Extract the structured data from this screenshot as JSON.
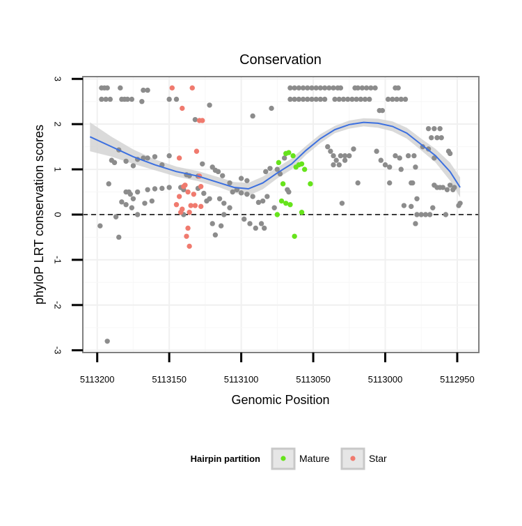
{
  "chart_data": {
    "type": "scatter",
    "title": "Conservation",
    "xlabel": "Genomic Position",
    "ylabel": "phyloP LRT conservation scores",
    "x_reversed": true,
    "xlim": [
      5113210,
      5112935
    ],
    "ylim": [
      -3.05,
      3.05
    ],
    "x_ticks": [
      5113200,
      5113150,
      5113100,
      5113050,
      5113000,
      5112950
    ],
    "x_tick_labels": [
      "5113200",
      "5113150",
      "5113100",
      "5113050",
      "5113000",
      "5112950"
    ],
    "y_ticks": [
      3,
      2,
      1,
      0,
      -1,
      -2,
      -3
    ],
    "y_tick_labels": [
      "3",
      "2",
      "1",
      "0",
      "-1",
      "-2",
      "-3"
    ],
    "reference_line": {
      "y": 0,
      "style": "dashed"
    },
    "legend": {
      "title": "Hairpin partition",
      "position": "bottom",
      "entries": [
        {
          "label": "Mature",
          "color": "#66e31b"
        },
        {
          "label": "Star",
          "color": "#f07a6e"
        }
      ]
    },
    "colors": {
      "other": "#8c8c8c",
      "Mature": "#66e31b",
      "Star": "#f07a6e",
      "smooth": "#3b6fe0",
      "band": "#d4d4d4"
    },
    "series": [
      {
        "name": "Other",
        "points": [
          [
            5113197,
            2.8
          ],
          [
            5113195,
            2.8
          ],
          [
            5113193,
            2.8
          ],
          [
            5113184,
            2.8
          ],
          [
            5113197,
            2.55
          ],
          [
            5113194,
            2.55
          ],
          [
            5113191,
            2.55
          ],
          [
            5113183,
            2.55
          ],
          [
            5113181,
            2.55
          ],
          [
            5113179,
            2.55
          ],
          [
            5113176,
            2.55
          ],
          [
            5113168,
            2.75
          ],
          [
            5113165,
            2.75
          ],
          [
            5113169,
            2.5
          ],
          [
            5113150,
            2.55
          ],
          [
            5113145,
            2.55
          ],
          [
            5113132,
            2.1
          ],
          [
            5113122,
            2.42
          ],
          [
            5113092,
            2.18
          ],
          [
            5113079,
            2.35
          ],
          [
            5113190,
            1.2
          ],
          [
            5113188,
            1.15
          ],
          [
            5113185,
            1.43
          ],
          [
            5113180,
            1.18
          ],
          [
            5113175,
            1.08
          ],
          [
            5113172,
            1.22
          ],
          [
            5113168,
            1.25
          ],
          [
            5113165,
            1.25
          ],
          [
            5113160,
            1.28
          ],
          [
            5113155,
            1.1
          ],
          [
            5113150,
            1.3
          ],
          [
            5113138,
            0.88
          ],
          [
            5113136,
            0.86
          ],
          [
            5113130,
            0.85
          ],
          [
            5113127,
            1.12
          ],
          [
            5113120,
            1.05
          ],
          [
            5113118,
            0.98
          ],
          [
            5113116,
            0.95
          ],
          [
            5113113,
            0.86
          ],
          [
            5113108,
            0.7
          ],
          [
            5113103,
            0.55
          ],
          [
            5113100,
            0.8
          ],
          [
            5113096,
            0.75
          ],
          [
            5113083,
            0.95
          ],
          [
            5113080,
            1.02
          ],
          [
            5113075,
            1.0
          ],
          [
            5113192,
            0.68
          ],
          [
            5113180,
            0.5
          ],
          [
            5113178,
            0.5
          ],
          [
            5113177,
            0.45
          ],
          [
            5113175,
            0.35
          ],
          [
            5113172,
            0.5
          ],
          [
            5113165,
            0.55
          ],
          [
            5113160,
            0.57
          ],
          [
            5113155,
            0.58
          ],
          [
            5113150,
            0.6
          ],
          [
            5113142,
            0.6
          ],
          [
            5113140,
            0.55
          ],
          [
            5113130,
            0.58
          ],
          [
            5113126,
            0.47
          ],
          [
            5113124,
            0.3
          ],
          [
            5113122,
            0.35
          ],
          [
            5113115,
            0.35
          ],
          [
            5113112,
            0.25
          ],
          [
            5113108,
            0.15
          ],
          [
            5113106,
            0.5
          ],
          [
            5113103,
            0.55
          ],
          [
            5113100,
            0.48
          ],
          [
            5113096,
            0.45
          ],
          [
            5113092,
            0.4
          ],
          [
            5113088,
            0.27
          ],
          [
            5113085,
            0.3
          ],
          [
            5113082,
            0.4
          ],
          [
            5113077,
            0.15
          ],
          [
            5113183,
            0.28
          ],
          [
            5113180,
            0.22
          ],
          [
            5113176,
            0.15
          ],
          [
            5113167,
            0.25
          ],
          [
            5113162,
            0.3
          ],
          [
            5113198,
            -0.25
          ],
          [
            5113187,
            -0.05
          ],
          [
            5113185,
            -0.5
          ],
          [
            5113172,
            0.0
          ],
          [
            5113140,
            0.0
          ],
          [
            5113112,
            0.0
          ],
          [
            5113098,
            -0.1
          ],
          [
            5113094,
            -0.2
          ],
          [
            5113090,
            -0.3
          ],
          [
            5113086,
            -0.2
          ],
          [
            5113084,
            -0.3
          ],
          [
            5113120,
            -0.2
          ],
          [
            5113118,
            -0.45
          ],
          [
            5113114,
            -0.25
          ],
          [
            5113193,
            -2.8
          ],
          [
            5113068,
            0.55
          ],
          [
            5113067,
            0.5
          ],
          [
            5113070,
            1.25
          ],
          [
            5113073,
            0.9
          ],
          [
            5113066,
            2.8
          ],
          [
            5113063,
            2.8
          ],
          [
            5113060,
            2.8
          ],
          [
            5113057,
            2.8
          ],
          [
            5113054,
            2.8
          ],
          [
            5113051,
            2.8
          ],
          [
            5113048,
            2.8
          ],
          [
            5113045,
            2.8
          ],
          [
            5113042,
            2.8
          ],
          [
            5113039,
            2.8
          ],
          [
            5113036,
            2.8
          ],
          [
            5113066,
            2.55
          ],
          [
            5113063,
            2.55
          ],
          [
            5113060,
            2.55
          ],
          [
            5113057,
            2.55
          ],
          [
            5113054,
            2.55
          ],
          [
            5113051,
            2.55
          ],
          [
            5113048,
            2.55
          ],
          [
            5113045,
            2.55
          ],
          [
            5113042,
            2.55
          ],
          [
            5113033,
            2.8
          ],
          [
            5113031,
            2.8
          ],
          [
            5113021,
            2.8
          ],
          [
            5113019,
            2.8
          ],
          [
            5113016,
            2.8
          ],
          [
            5113013,
            2.8
          ],
          [
            5113010,
            2.8
          ],
          [
            5113007,
            2.8
          ],
          [
            5112993,
            2.8
          ],
          [
            5112991,
            2.8
          ],
          [
            5113035,
            2.55
          ],
          [
            5113032,
            2.55
          ],
          [
            5113029,
            2.55
          ],
          [
            5113026,
            2.55
          ],
          [
            5113023,
            2.55
          ],
          [
            5113020,
            2.55
          ],
          [
            5113017,
            2.55
          ],
          [
            5113014,
            2.55
          ],
          [
            5113011,
            2.55
          ],
          [
            5112998,
            2.55
          ],
          [
            5112995,
            2.55
          ],
          [
            5112992,
            2.55
          ],
          [
            5112989,
            2.55
          ],
          [
            5112986,
            2.55
          ],
          [
            5113004,
            2.3
          ],
          [
            5113002,
            2.3
          ],
          [
            5113040,
            1.5
          ],
          [
            5113038,
            1.4
          ],
          [
            5113036,
            1.3
          ],
          [
            5113034,
            1.2
          ],
          [
            5113031,
            1.3
          ],
          [
            5113028,
            1.3
          ],
          [
            5113025,
            1.3
          ],
          [
            5113022,
            1.45
          ],
          [
            5113036,
            1.1
          ],
          [
            5113032,
            1.1
          ],
          [
            5113028,
            1.2
          ],
          [
            5113006,
            1.4
          ],
          [
            5113003,
            1.2
          ],
          [
            5113000,
            1.1
          ],
          [
            5112993,
            1.3
          ],
          [
            5112990,
            1.25
          ],
          [
            5112989,
            1.0
          ],
          [
            5112997,
            1.05
          ],
          [
            5112984,
            1.3
          ],
          [
            5112980,
            1.3
          ],
          [
            5112979,
            1.05
          ],
          [
            5112974,
            1.5
          ],
          [
            5112970,
            1.45
          ],
          [
            5112966,
            1.25
          ],
          [
            5113019,
            0.7
          ],
          [
            5112997,
            0.7
          ],
          [
            5113030,
            0.25
          ],
          [
            5112970,
            1.9
          ],
          [
            5112966,
            1.9
          ],
          [
            5112962,
            1.9
          ],
          [
            5112968,
            1.7
          ],
          [
            5112964,
            1.7
          ],
          [
            5112961,
            1.7
          ],
          [
            5112956,
            1.4
          ],
          [
            5112955,
            1.35
          ],
          [
            5112948,
            0.25
          ],
          [
            5112949,
            0.2
          ],
          [
            5112982,
            0.7
          ],
          [
            5112981,
            0.7
          ],
          [
            5112978,
            0.35
          ],
          [
            5112982,
            0.18
          ],
          [
            5112978,
            0.0
          ],
          [
            5112975,
            0.0
          ],
          [
            5112972,
            0.0
          ],
          [
            5112969,
            0.0
          ],
          [
            5112966,
            0.65
          ],
          [
            5112964,
            0.6
          ],
          [
            5112962,
            0.6
          ],
          [
            5112960,
            0.6
          ],
          [
            5112957,
            0.55
          ],
          [
            5112955,
            0.65
          ],
          [
            5112953,
            0.55
          ],
          [
            5112952,
            0.6
          ],
          [
            5112958,
            0.0
          ],
          [
            5112967,
            0.15
          ],
          [
            5112987,
            0.2
          ],
          [
            5112979,
            -0.2
          ]
        ]
      },
      {
        "name": "Star",
        "points": [
          [
            5113148,
            2.8
          ],
          [
            5113134,
            2.8
          ],
          [
            5113141,
            2.35
          ],
          [
            5113129,
            2.08
          ],
          [
            5113127,
            2.08
          ],
          [
            5113131,
            1.4
          ],
          [
            5113143,
            1.25
          ],
          [
            5113129,
            0.85
          ],
          [
            5113140,
            0.62
          ],
          [
            5113139,
            0.65
          ],
          [
            5113137,
            0.5
          ],
          [
            5113133,
            0.45
          ],
          [
            5113143,
            0.4
          ],
          [
            5113128,
            0.62
          ],
          [
            5113145,
            0.22
          ],
          [
            5113135,
            0.2
          ],
          [
            5113141,
            0.12
          ],
          [
            5113128,
            0.18
          ],
          [
            5113136,
            0.05
          ],
          [
            5113142,
            0.05
          ],
          [
            5113137,
            -0.3
          ],
          [
            5113138,
            -0.48
          ],
          [
            5113136,
            -0.7
          ],
          [
            5113132,
            0.2
          ]
        ]
      },
      {
        "name": "Mature",
        "points": [
          [
            5113069,
            1.35
          ],
          [
            5113067,
            1.37
          ],
          [
            5113064,
            1.3
          ],
          [
            5113060,
            1.1
          ],
          [
            5113058,
            1.12
          ],
          [
            5113056,
            1.0
          ],
          [
            5113062,
            1.05
          ],
          [
            5113074,
            1.15
          ],
          [
            5113071,
            0.68
          ],
          [
            5113072,
            0.3
          ],
          [
            5113069,
            0.25
          ],
          [
            5113066,
            0.22
          ],
          [
            5113058,
            0.05
          ],
          [
            5113075,
            0.0
          ],
          [
            5113063,
            -0.48
          ],
          [
            5113052,
            0.68
          ]
        ]
      }
    ],
    "smooth_curve": {
      "x": [
        5113205,
        5113190,
        5113175,
        5113160,
        5113145,
        5113130,
        5113115,
        5113105,
        5113095,
        5113085,
        5113075,
        5113065,
        5113055,
        5113045,
        5113035,
        5113025,
        5113015,
        5113005,
        5112995,
        5112985,
        5112975,
        5112965,
        5112955,
        5112948
      ],
      "y": [
        1.72,
        1.5,
        1.28,
        1.1,
        0.95,
        0.85,
        0.7,
        0.6,
        0.57,
        0.7,
        0.92,
        1.12,
        1.42,
        1.68,
        1.88,
        1.99,
        2.04,
        2.02,
        1.95,
        1.8,
        1.55,
        1.3,
        0.95,
        0.6
      ],
      "ci_low": [
        1.4,
        1.28,
        1.12,
        0.98,
        0.84,
        0.74,
        0.6,
        0.48,
        0.42,
        0.56,
        0.8,
        1.0,
        1.32,
        1.58,
        1.8,
        1.9,
        1.95,
        1.92,
        1.84,
        1.68,
        1.42,
        1.15,
        0.75,
        0.38
      ],
      "ci_high": [
        2.04,
        1.72,
        1.44,
        1.22,
        1.06,
        0.96,
        0.82,
        0.72,
        0.7,
        0.84,
        1.04,
        1.24,
        1.52,
        1.78,
        1.96,
        2.08,
        2.13,
        2.12,
        2.06,
        1.92,
        1.68,
        1.45,
        1.15,
        0.82
      ]
    }
  }
}
